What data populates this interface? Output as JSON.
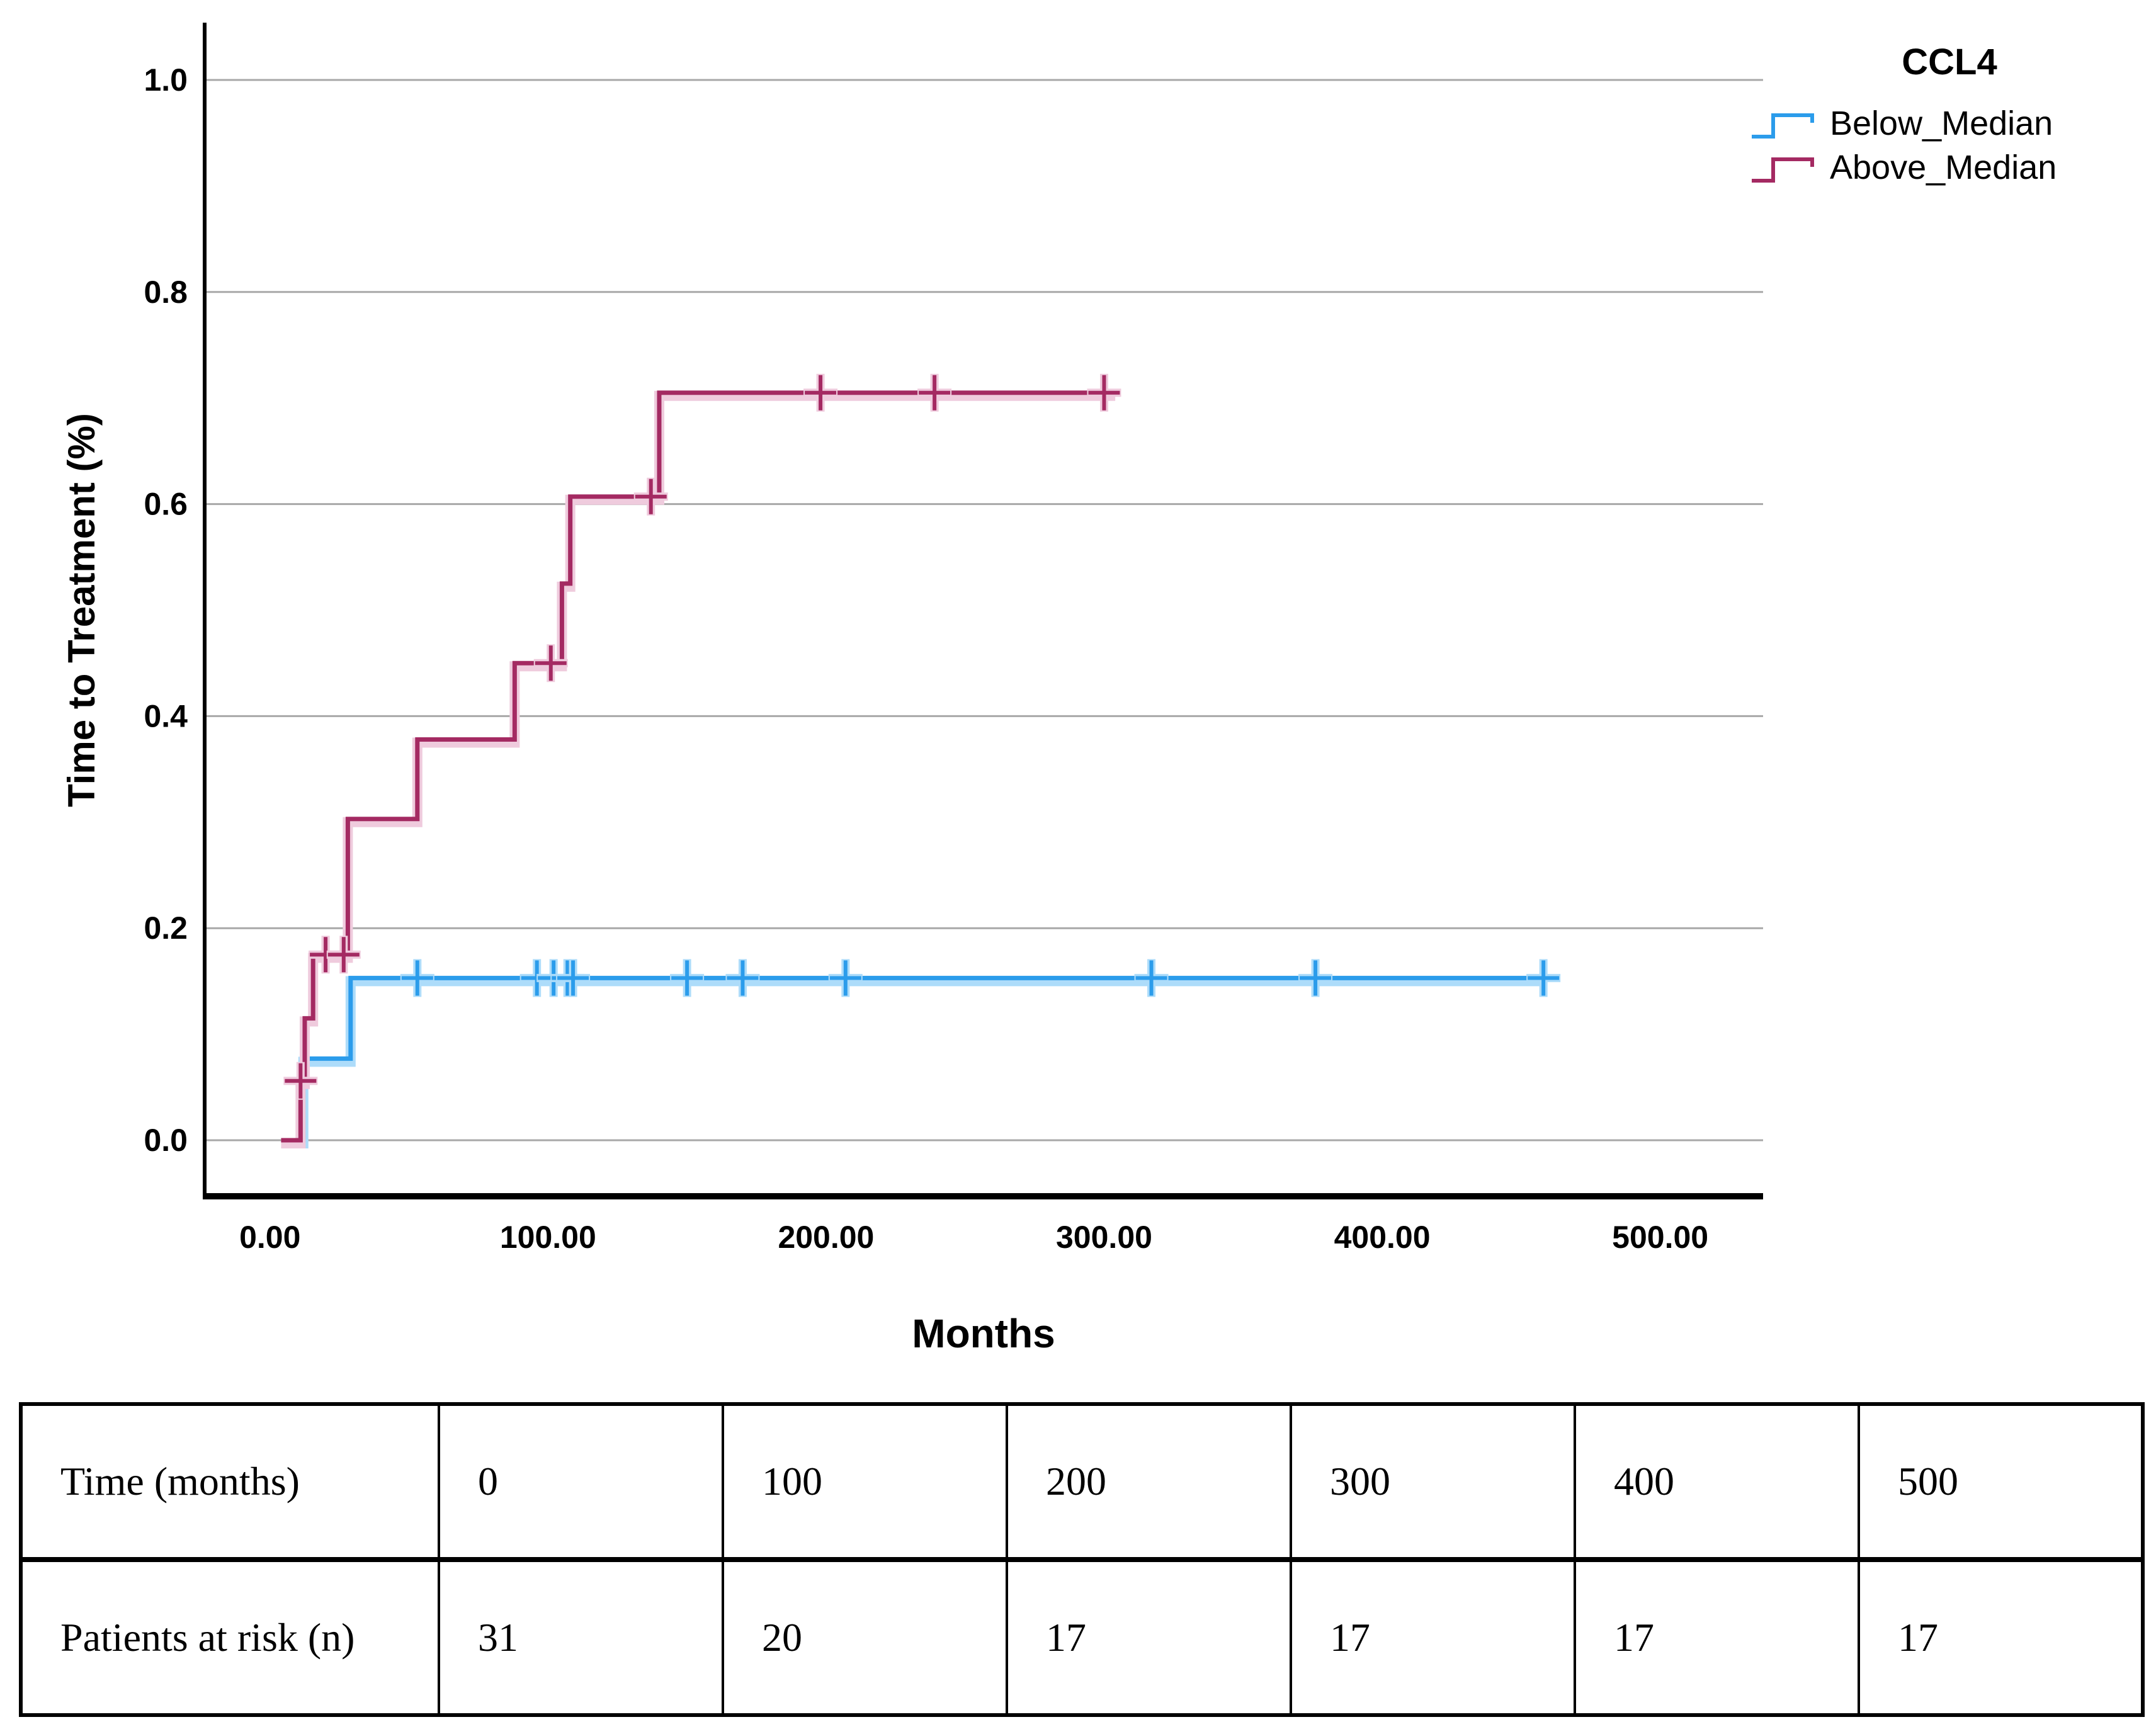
{
  "chart_data": {
    "type": "km_step",
    "title": "",
    "legend_title": "CCL4",
    "xlabel": "Months",
    "ylabel": "Time to Treatment (%)",
    "xlim": [
      -23.5,
      537
    ],
    "ylim": [
      0,
      1.0
    ],
    "grid": "horizontal",
    "legend_position": "top-right",
    "x_ticks": {
      "values": [
        0,
        100,
        200,
        300,
        400,
        500
      ],
      "labels": [
        "0.00",
        "100.00",
        "200.00",
        "300.00",
        "400.00",
        "500.00"
      ]
    },
    "y_ticks": {
      "values": [
        0,
        0.2,
        0.4,
        0.6,
        0.8,
        1.0
      ],
      "labels": [
        "0.0",
        "0.2",
        "0.4",
        "0.6",
        "0.8",
        "1.0"
      ]
    },
    "series": [
      {
        "name": "Below_Median",
        "color": "#2B9CEB",
        "halo_color": "#ADDCFA",
        "steps": [
          [
            6,
            0
          ],
          [
            12,
            0
          ],
          [
            12,
            0.077
          ],
          [
            29,
            0.077
          ],
          [
            29,
            0.153
          ],
          [
            458,
            0.153
          ]
        ],
        "censors": [
          [
            53,
            0.153
          ],
          [
            96,
            0.153
          ],
          [
            102,
            0.153
          ],
          [
            107,
            0.153
          ],
          [
            109,
            0.153
          ],
          [
            150,
            0.153
          ],
          [
            170,
            0.153
          ],
          [
            207,
            0.153
          ],
          [
            317,
            0.153
          ],
          [
            376,
            0.153
          ],
          [
            458,
            0.153
          ]
        ]
      },
      {
        "name": "Above_Median",
        "color": "#A42A62",
        "halo_color": "#EFCBDD",
        "steps": [
          [
            4,
            0
          ],
          [
            11,
            0
          ],
          [
            11,
            0.056
          ],
          [
            12.5,
            0.056
          ],
          [
            12.5,
            0.115
          ],
          [
            15.5,
            0.115
          ],
          [
            15.5,
            0.175
          ],
          [
            28,
            0.175
          ],
          [
            28,
            0.303
          ],
          [
            53,
            0.303
          ],
          [
            53,
            0.378
          ],
          [
            88,
            0.378
          ],
          [
            88,
            0.45
          ],
          [
            105,
            0.45
          ],
          [
            105,
            0.525
          ],
          [
            108,
            0.525
          ],
          [
            108,
            0.607
          ],
          [
            140,
            0.607
          ],
          [
            140,
            0.705
          ],
          [
            304,
            0.705
          ]
        ],
        "censors": [
          [
            11,
            0.056
          ],
          [
            20,
            0.175
          ],
          [
            26.5,
            0.175
          ],
          [
            101,
            0.45
          ],
          [
            137,
            0.607
          ],
          [
            198,
            0.705
          ],
          [
            239,
            0.705
          ],
          [
            300,
            0.705
          ]
        ]
      }
    ]
  },
  "risk_table": {
    "rows": [
      {
        "label": "Time (months)",
        "values": [
          "0",
          "100",
          "200",
          "300",
          "400",
          "500"
        ]
      },
      {
        "label": "Patients at risk (n)",
        "values": [
          "31",
          "20",
          "17",
          "17",
          "17",
          "17"
        ]
      }
    ]
  }
}
